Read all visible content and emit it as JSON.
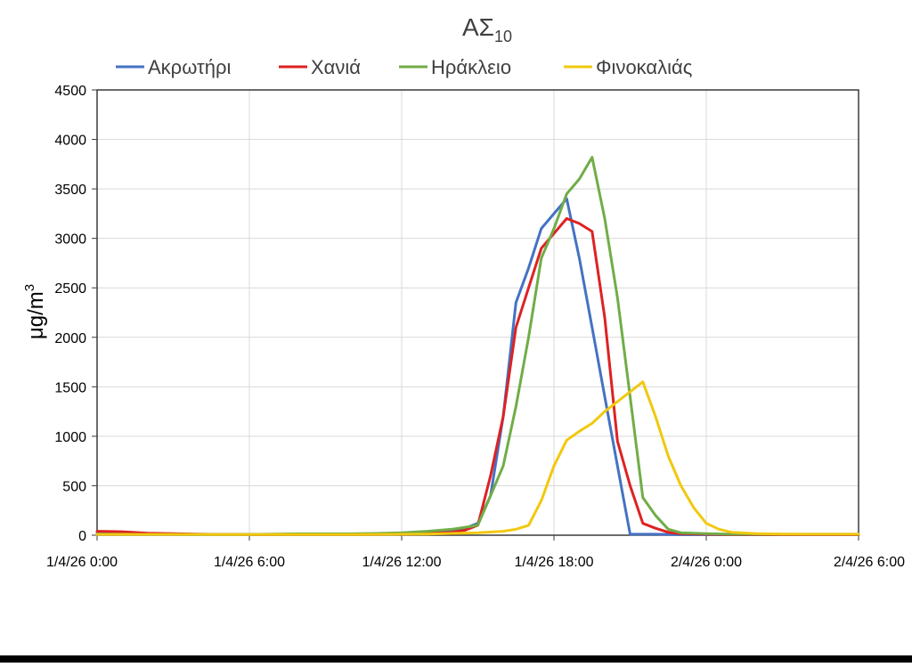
{
  "chart_data": {
    "type": "line",
    "title_main": "ΑΣ",
    "title_sub": "10",
    "ylabel": "μg/m",
    "ylabel_sup": "3",
    "xlabel": "",
    "x_unit": "hours from 1/4/26 0:00",
    "xlim": [
      0,
      30
    ],
    "ylim": [
      0,
      4500
    ],
    "yticks": [
      0,
      500,
      1000,
      1500,
      2000,
      2500,
      3000,
      3500,
      4000,
      4500
    ],
    "xticks": [
      {
        "value": 0,
        "label": "1/4/26 0:00"
      },
      {
        "value": 6,
        "label": "1/4/26 6:00"
      },
      {
        "value": 12,
        "label": "1/4/26 12:00"
      },
      {
        "value": 18,
        "label": "1/4/26 18:00"
      },
      {
        "value": 24,
        "label": "2/4/26 0:00"
      },
      {
        "value": 30,
        "label": "2/4/26 6:00"
      }
    ],
    "grid": true,
    "legend_position": "top",
    "series": [
      {
        "name": "Ακρωτήρι",
        "color": "#4472C4",
        "points": [
          [
            0,
            20
          ],
          [
            1,
            18
          ],
          [
            2,
            15
          ],
          [
            3,
            12
          ],
          [
            4,
            10
          ],
          [
            5,
            8
          ],
          [
            6,
            6
          ],
          [
            7,
            6
          ],
          [
            8,
            8
          ],
          [
            9,
            8
          ],
          [
            10,
            8
          ],
          [
            11,
            10
          ],
          [
            12,
            12
          ],
          [
            13,
            18
          ],
          [
            14,
            40
          ],
          [
            14.5,
            70
          ],
          [
            15,
            120
          ],
          [
            15.5,
            400
          ],
          [
            16,
            1200
          ],
          [
            16.5,
            2350
          ],
          [
            17,
            2700
          ],
          [
            17.5,
            3100
          ],
          [
            18,
            3250
          ],
          [
            18.5,
            3400
          ],
          [
            19,
            2800
          ],
          [
            19.5,
            2100
          ],
          [
            20,
            1400
          ],
          [
            20.5,
            700
          ],
          [
            21,
            10
          ],
          [
            22,
            10
          ],
          [
            23,
            5
          ],
          [
            24,
            5
          ],
          [
            25,
            5
          ],
          [
            26,
            5
          ],
          [
            27,
            5
          ],
          [
            28,
            5
          ],
          [
            29,
            5
          ],
          [
            30,
            5
          ]
        ]
      },
      {
        "name": "Χανιά",
        "color": "#DD2222",
        "points": [
          [
            0,
            40
          ],
          [
            1,
            35
          ],
          [
            2,
            20
          ],
          [
            3,
            15
          ],
          [
            4,
            10
          ],
          [
            5,
            8
          ],
          [
            6,
            6
          ],
          [
            7,
            6
          ],
          [
            8,
            6
          ],
          [
            9,
            6
          ],
          [
            10,
            6
          ],
          [
            11,
            8
          ],
          [
            12,
            10
          ],
          [
            13,
            15
          ],
          [
            14,
            30
          ],
          [
            14.5,
            50
          ],
          [
            15,
            100
          ],
          [
            15.5,
            600
          ],
          [
            16,
            1200
          ],
          [
            16.5,
            2100
          ],
          [
            17,
            2500
          ],
          [
            17.5,
            2900
          ],
          [
            18,
            3050
          ],
          [
            18.5,
            3200
          ],
          [
            19,
            3150
          ],
          [
            19.5,
            3070
          ],
          [
            20,
            2200
          ],
          [
            20.5,
            950
          ],
          [
            21,
            500
          ],
          [
            21.5,
            120
          ],
          [
            22,
            70
          ],
          [
            22.5,
            30
          ],
          [
            23,
            15
          ],
          [
            24,
            10
          ],
          [
            25,
            5
          ],
          [
            26,
            5
          ],
          [
            27,
            5
          ],
          [
            28,
            5
          ],
          [
            29,
            5
          ],
          [
            30,
            5
          ]
        ]
      },
      {
        "name": "Ηράκλειο",
        "color": "#70AD47",
        "points": [
          [
            0,
            10
          ],
          [
            1,
            10
          ],
          [
            2,
            8
          ],
          [
            3,
            8
          ],
          [
            4,
            6
          ],
          [
            5,
            6
          ],
          [
            6,
            8
          ],
          [
            7,
            12
          ],
          [
            8,
            14
          ],
          [
            9,
            14
          ],
          [
            10,
            14
          ],
          [
            11,
            18
          ],
          [
            12,
            25
          ],
          [
            13,
            40
          ],
          [
            14,
            60
          ],
          [
            14.5,
            80
          ],
          [
            15,
            100
          ],
          [
            15.5,
            400
          ],
          [
            16,
            700
          ],
          [
            16.5,
            1300
          ],
          [
            17,
            2000
          ],
          [
            17.5,
            2800
          ],
          [
            18,
            3100
          ],
          [
            18.5,
            3450
          ],
          [
            19,
            3600
          ],
          [
            19.5,
            3820
          ],
          [
            20,
            3200
          ],
          [
            20.5,
            2400
          ],
          [
            21,
            1400
          ],
          [
            21.5,
            380
          ],
          [
            22,
            200
          ],
          [
            22.5,
            60
          ],
          [
            23,
            25
          ],
          [
            24,
            15
          ],
          [
            25,
            10
          ],
          [
            26,
            10
          ],
          [
            27,
            10
          ],
          [
            28,
            10
          ],
          [
            29,
            10
          ],
          [
            30,
            10
          ]
        ]
      },
      {
        "name": "Φινοκαλιάς",
        "color": "#F2C80F",
        "points": [
          [
            0,
            8
          ],
          [
            1,
            8
          ],
          [
            2,
            8
          ],
          [
            3,
            8
          ],
          [
            4,
            8
          ],
          [
            5,
            6
          ],
          [
            6,
            6
          ],
          [
            7,
            6
          ],
          [
            8,
            6
          ],
          [
            9,
            6
          ],
          [
            10,
            6
          ],
          [
            11,
            8
          ],
          [
            12,
            10
          ],
          [
            13,
            12
          ],
          [
            14,
            18
          ],
          [
            15,
            25
          ],
          [
            16,
            40
          ],
          [
            16.5,
            60
          ],
          [
            17,
            100
          ],
          [
            17.5,
            350
          ],
          [
            18,
            700
          ],
          [
            18.5,
            960
          ],
          [
            19,
            1050
          ],
          [
            19.5,
            1130
          ],
          [
            20,
            1250
          ],
          [
            20.5,
            1350
          ],
          [
            21,
            1450
          ],
          [
            21.5,
            1550
          ],
          [
            22,
            1200
          ],
          [
            22.5,
            800
          ],
          [
            23,
            500
          ],
          [
            23.5,
            280
          ],
          [
            24,
            120
          ],
          [
            24.5,
            60
          ],
          [
            25,
            30
          ],
          [
            26,
            15
          ],
          [
            27,
            12
          ],
          [
            28,
            10
          ],
          [
            29,
            10
          ],
          [
            30,
            10
          ]
        ]
      }
    ]
  }
}
